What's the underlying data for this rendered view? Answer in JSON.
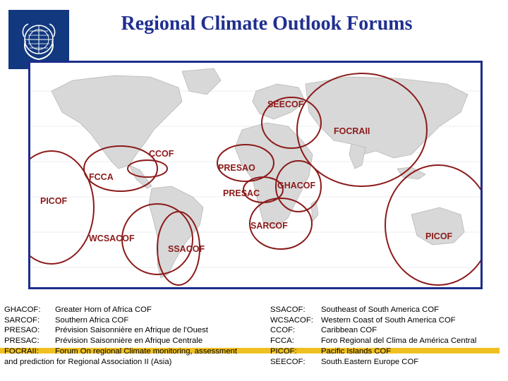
{
  "header": {
    "title": "Regional Climate Outlook Forums",
    "logo_icon": "wmo-emblem-icon"
  },
  "map": {
    "regions": [
      {
        "label": "SEECOF"
      },
      {
        "label": "FOCRAII"
      },
      {
        "label": "CCOF"
      },
      {
        "label": "FCCA"
      },
      {
        "label": "PRESAO"
      },
      {
        "label": "PICOF"
      },
      {
        "label": "PRESAC"
      },
      {
        "label": "GHACOF"
      },
      {
        "label": "SARCOF"
      },
      {
        "label": "WCSACOF"
      },
      {
        "label": "SSACOF"
      },
      {
        "label": "PICOF"
      }
    ],
    "circle_color": "#8b1a1a",
    "frame_color": "#1b2d8a"
  },
  "legend_left": [
    {
      "abbr": "GHACOF:",
      "name": "Greater Horn of Africa COF"
    },
    {
      "abbr": "SARCOF:",
      "name": "Southern Africa COF"
    },
    {
      "abbr": "PRESAO:",
      "name": "Prévision Saisonnière en Afrique de l'Ouest"
    },
    {
      "abbr": "PRESAC:",
      "name": "Prévision Saisonnière en Afrique Centrale"
    },
    {
      "abbr": "FOCRAII:",
      "name": "Forum On regional Climate monitoring, assessment"
    }
  ],
  "legend_left_cont": "and prediction for Regional Association II (Asia)",
  "legend_right": [
    {
      "abbr": "SSACOF:",
      "name": "Southeast of South America COF"
    },
    {
      "abbr": "WCSACOF:",
      "name": "Western Coast of South America COF"
    },
    {
      "abbr": "CCOF:",
      "name": "Caribbean COF"
    },
    {
      "abbr": "FCCA:",
      "name": "Foro Regional del Clima de América Central"
    },
    {
      "abbr": "PICOF:",
      "name": "Pacific Islands COF"
    },
    {
      "abbr": "SEECOF:",
      "name": "South.Eastern Europe COF"
    }
  ],
  "colors": {
    "title": "#1f2f8f",
    "highlight": "#f0c020",
    "logo_bg": "#12397f"
  }
}
